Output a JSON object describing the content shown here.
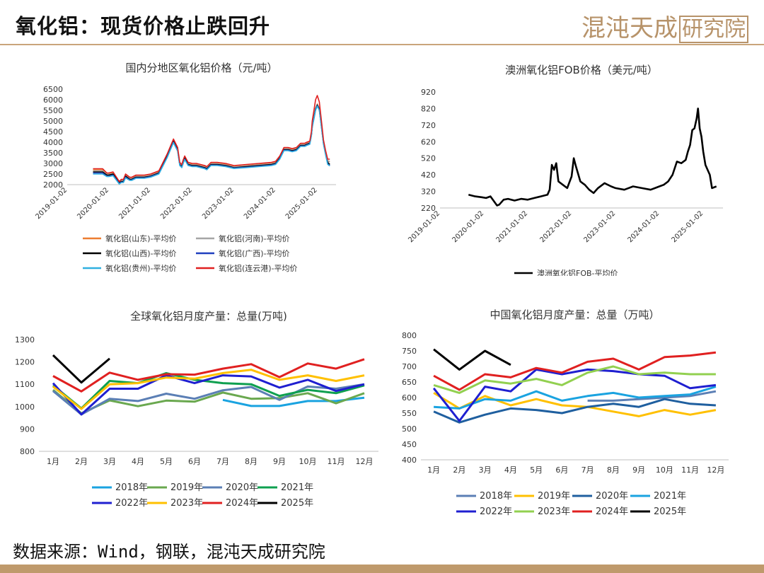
{
  "page": {
    "title": "氧化铝：现货价格止跌回升",
    "logo_text": "混沌天成",
    "logo_box_text": "研究院",
    "source": "数据来源：Wind，钢联，混沌天成研究院"
  },
  "chart_data": [
    {
      "id": "domestic",
      "type": "line",
      "title": "国内分地区氧化铝价格（元/吨）",
      "ylim": [
        2000,
        6500
      ],
      "yticks": [
        2000,
        2500,
        3000,
        3500,
        4000,
        4500,
        5000,
        5500,
        6000,
        6500
      ],
      "xticks": [
        "2019-01-02",
        "2020-01-02",
        "2021-01-02",
        "2022-01-02",
        "2023-01-02",
        "2024-01-02",
        "2025-01-02"
      ],
      "xrange": [
        2019.0,
        2025.45
      ],
      "x": [
        2019.62,
        2019.75,
        2019.85,
        2019.95,
        2020.0,
        2020.1,
        2020.25,
        2020.3,
        2020.35,
        2020.4,
        2020.5,
        2020.55,
        2020.65,
        2020.75,
        2020.85,
        2021.0,
        2021.2,
        2021.4,
        2021.55,
        2021.65,
        2021.7,
        2021.75,
        2021.78,
        2021.82,
        2021.9,
        2022.0,
        2022.1,
        2022.2,
        2022.3,
        2022.35,
        2022.45,
        2022.6,
        2022.8,
        2023.0,
        2023.3,
        2023.6,
        2023.9,
        2024.0,
        2024.1,
        2024.2,
        2024.3,
        2024.4,
        2024.5,
        2024.6,
        2024.7,
        2024.75,
        2024.82,
        2024.86,
        2024.88,
        2024.92,
        2024.96,
        2025.0,
        2025.05,
        2025.1,
        2025.15,
        2025.2,
        2025.25,
        2025.3
      ],
      "series": [
        {
          "name": "氧化铝(山东)-平均价",
          "color": "#ed7d31",
          "values": [
            2700,
            2700,
            2700,
            2500,
            2500,
            2550,
            2100,
            2200,
            2200,
            2450,
            2300,
            2300,
            2400,
            2400,
            2400,
            2450,
            2600,
            3400,
            4100,
            3700,
            3000,
            2900,
            3100,
            3300,
            3000,
            2950,
            2950,
            2900,
            2850,
            2800,
            3000,
            3000,
            2950,
            2850,
            2900,
            2950,
            3000,
            3050,
            3300,
            3700,
            3700,
            3650,
            3700,
            3900,
            3900,
            3950,
            4000,
            4400,
            4800,
            5200,
            5600,
            5800,
            5600,
            4800,
            4000,
            3500,
            3100,
            3100
          ]
        },
        {
          "name": "氧化铝(河南)-平均价",
          "color": "#a5a5a5",
          "values": [
            2650,
            2650,
            2650,
            2480,
            2480,
            2520,
            2100,
            2180,
            2180,
            2420,
            2280,
            2280,
            2380,
            2380,
            2380,
            2430,
            2580,
            3380,
            4080,
            3680,
            2980,
            2880,
            3080,
            3280,
            2980,
            2930,
            2930,
            2880,
            2830,
            2780,
            2980,
            2980,
            2930,
            2830,
            2880,
            2930,
            2980,
            3030,
            3280,
            3680,
            3680,
            3630,
            3680,
            3880,
            3880,
            3930,
            3980,
            4380,
            4780,
            5180,
            5580,
            5780,
            5580,
            4780,
            3980,
            3480,
            3080,
            3080
          ]
        },
        {
          "name": "氧化铝(山西)-平均价",
          "color": "#000000",
          "values": [
            2600,
            2600,
            2600,
            2450,
            2450,
            2500,
            2080,
            2150,
            2150,
            2400,
            2250,
            2250,
            2350,
            2350,
            2350,
            2400,
            2550,
            3350,
            4050,
            3650,
            2950,
            2850,
            3050,
            3250,
            2950,
            2900,
            2900,
            2850,
            2800,
            2750,
            2950,
            2950,
            2900,
            2800,
            2850,
            2900,
            2950,
            3000,
            3250,
            3650,
            3650,
            3600,
            3650,
            3850,
            3850,
            3900,
            3950,
            4350,
            4750,
            5150,
            5550,
            5750,
            5550,
            4750,
            3950,
            3450,
            3050,
            2950
          ]
        },
        {
          "name": "氧化铝(广西)-平均价",
          "color": "#1f3fbf",
          "values": [
            2550,
            2550,
            2550,
            2400,
            2400,
            2450,
            2050,
            2120,
            2120,
            2350,
            2220,
            2220,
            2320,
            2320,
            2320,
            2380,
            2520,
            3300,
            4000,
            3600,
            2920,
            2820,
            3000,
            3200,
            2920,
            2870,
            2870,
            2820,
            2770,
            2720,
            2920,
            2920,
            2870,
            2780,
            2820,
            2870,
            2920,
            2970,
            3220,
            3620,
            3620,
            3570,
            3620,
            3820,
            3820,
            3870,
            3920,
            4320,
            4720,
            5120,
            5520,
            5720,
            5520,
            4720,
            3920,
            3420,
            2980,
            2900
          ]
        },
        {
          "name": "氧化铝(贵州)-平均价",
          "color": "#30b0e0",
          "values": [
            2500,
            2500,
            2500,
            2380,
            2380,
            2420,
            2030,
            2100,
            2100,
            2320,
            2200,
            2200,
            2300,
            2300,
            2300,
            2350,
            2500,
            3280,
            3980,
            3580,
            2900,
            2800,
            2980,
            3180,
            2900,
            2850,
            2850,
            2800,
            2750,
            2700,
            2900,
            2900,
            2850,
            2760,
            2800,
            2850,
            2900,
            2950,
            3200,
            3600,
            3600,
            3550,
            3600,
            3800,
            3800,
            3850,
            3900,
            4300,
            4700,
            5100,
            5500,
            5700,
            5500,
            4700,
            3900,
            3400,
            2960,
            2880
          ]
        },
        {
          "name": "氧化铝(连云港)-平均价",
          "color": "#e02020",
          "values": [
            2750,
            2750,
            2750,
            2550,
            2550,
            2600,
            2150,
            2250,
            2250,
            2500,
            2350,
            2350,
            2450,
            2450,
            2450,
            2500,
            2650,
            3450,
            4150,
            3750,
            3050,
            2950,
            3150,
            3350,
            3050,
            3000,
            3000,
            2950,
            2900,
            2850,
            3050,
            3050,
            3000,
            2900,
            2950,
            3000,
            3050,
            3100,
            3350,
            3750,
            3750,
            3700,
            3750,
            3950,
            3950,
            4000,
            4050,
            4500,
            5000,
            5500,
            6000,
            6200,
            5900,
            5000,
            4100,
            3600,
            3200,
            3200
          ]
        }
      ]
    },
    {
      "id": "fob",
      "type": "line",
      "title": "澳洲氧化铝FOB价格（美元/吨）",
      "ylim": [
        220,
        920
      ],
      "yticks": [
        220,
        320,
        420,
        520,
        620,
        720,
        820,
        920
      ],
      "xticks": [
        "2019-01-02",
        "2020-01-02",
        "2021-01-02",
        "2022-01-02",
        "2023-01-02",
        "2024-01-02",
        "2025-01-02"
      ],
      "xrange": [
        2019.0,
        2025.45
      ],
      "x": [
        2019.65,
        2019.8,
        2019.95,
        2020.05,
        2020.15,
        2020.3,
        2020.35,
        2020.45,
        2020.55,
        2020.7,
        2020.85,
        2021.0,
        2021.15,
        2021.3,
        2021.45,
        2021.5,
        2021.55,
        2021.6,
        2021.65,
        2021.7,
        2021.8,
        2021.9,
        2022.0,
        2022.05,
        2022.1,
        2022.2,
        2022.25,
        2022.3,
        2022.4,
        2022.5,
        2022.6,
        2022.75,
        2022.9,
        2023.0,
        2023.2,
        2023.4,
        2023.6,
        2023.8,
        2023.9,
        2024.0,
        2024.1,
        2024.2,
        2024.3,
        2024.4,
        2024.5,
        2024.6,
        2024.65,
        2024.7,
        2024.75,
        2024.8,
        2024.85,
        2024.88,
        2024.92,
        2024.96,
        2025.0,
        2025.05,
        2025.1,
        2025.15,
        2025.2,
        2025.3
      ],
      "series": [
        {
          "name": "澳洲氧化铝FOB-平均价",
          "color": "#000000",
          "values": [
            300,
            290,
            285,
            280,
            290,
            235,
            240,
            270,
            275,
            265,
            275,
            270,
            280,
            290,
            300,
            330,
            480,
            450,
            490,
            380,
            360,
            340,
            410,
            520,
            470,
            380,
            370,
            360,
            330,
            310,
            340,
            370,
            350,
            340,
            330,
            350,
            340,
            330,
            340,
            350,
            360,
            380,
            420,
            500,
            490,
            510,
            560,
            600,
            690,
            700,
            760,
            820,
            700,
            650,
            560,
            480,
            450,
            420,
            340,
            350
          ]
        }
      ]
    },
    {
      "id": "global_output",
      "type": "line",
      "title": "全球氧化铝月度产量：总量(万吨)",
      "ylim": [
        800,
        1300
      ],
      "yticks": [
        800,
        900,
        1000,
        1100,
        1200,
        1300
      ],
      "categories": [
        "1月",
        "2月",
        "3月",
        "4月",
        "5月",
        "6月",
        "7月",
        "8月",
        "9月",
        "10月",
        "11月",
        "12月"
      ],
      "series": [
        {
          "name": "2018年",
          "color": "#1aa3e0",
          "values": [
            null,
            null,
            null,
            null,
            null,
            null,
            1030,
            1003,
            1003,
            1025,
            1025,
            1040
          ]
        },
        {
          "name": "2019年",
          "color": "#6aa84f",
          "values": [
            1075,
            970,
            1028,
            1002,
            1027,
            1022,
            1063,
            1035,
            1038,
            1060,
            1015,
            1060
          ]
        },
        {
          "name": "2020年",
          "color": "#5b7fb5",
          "values": [
            1070,
            965,
            1035,
            1025,
            1058,
            1035,
            1073,
            1088,
            1030,
            1090,
            1080,
            1100
          ]
        },
        {
          "name": "2021年",
          "color": "#0fa050",
          "values": [
            1095,
            992,
            1115,
            1105,
            1150,
            1120,
            1105,
            1100,
            1048,
            1075,
            1060,
            1095
          ]
        },
        {
          "name": "2022年",
          "color": "#1f1fd0",
          "values": [
            1105,
            965,
            1080,
            1080,
            1140,
            1105,
            1140,
            1135,
            1085,
            1120,
            1070,
            1100
          ]
        },
        {
          "name": "2023年",
          "color": "#ffc000",
          "values": [
            1090,
            990,
            1100,
            1105,
            1130,
            1125,
            1150,
            1165,
            1120,
            1140,
            1115,
            1140
          ]
        },
        {
          "name": "2024年",
          "color": "#e02020",
          "values": [
            1137,
            1068,
            1152,
            1120,
            1145,
            1143,
            1170,
            1190,
            1132,
            1193,
            1170,
            1212
          ]
        },
        {
          "name": "2025年",
          "color": "#000000",
          "values": [
            1230,
            1108,
            1215,
            null,
            null,
            null,
            null,
            null,
            null,
            null,
            null,
            null
          ]
        }
      ]
    },
    {
      "id": "china_output",
      "type": "line",
      "title": "中国氧化铝月度产量：总量（万吨）",
      "ylim": [
        400,
        800
      ],
      "yticks": [
        400,
        450,
        500,
        550,
        600,
        650,
        700,
        750,
        800
      ],
      "categories": [
        "1月",
        "2月",
        "3月",
        "4月",
        "5月",
        "6月",
        "7月",
        "8月",
        "9月",
        "10月",
        "11月",
        "12月"
      ],
      "series": [
        {
          "name": "2018年",
          "color": "#5b7fb5",
          "values": [
            null,
            null,
            null,
            null,
            null,
            null,
            590,
            590,
            595,
            600,
            605,
            620
          ]
        },
        {
          "name": "2019年",
          "color": "#ffc000",
          "values": [
            615,
            565,
            605,
            575,
            595,
            575,
            570,
            555,
            540,
            560,
            545,
            560
          ]
        },
        {
          "name": "2020年",
          "color": "#1f5f9f",
          "values": [
            555,
            520,
            545,
            565,
            560,
            550,
            570,
            580,
            570,
            595,
            580,
            575
          ]
        },
        {
          "name": "2021年",
          "color": "#1aa3e0",
          "values": [
            570,
            565,
            595,
            590,
            620,
            590,
            605,
            615,
            600,
            605,
            610,
            635
          ]
        },
        {
          "name": "2022年",
          "color": "#1f1fd0",
          "values": [
            630,
            525,
            635,
            620,
            690,
            675,
            690,
            685,
            675,
            670,
            630,
            640
          ]
        },
        {
          "name": "2023年",
          "color": "#92d050",
          "values": [
            640,
            615,
            655,
            645,
            660,
            640,
            680,
            700,
            675,
            680,
            675,
            675
          ]
        },
        {
          "name": "2024年",
          "color": "#e02020",
          "values": [
            670,
            625,
            675,
            665,
            695,
            680,
            715,
            725,
            690,
            730,
            735,
            745
          ]
        },
        {
          "name": "2025年",
          "color": "#000000",
          "values": [
            755,
            690,
            750,
            705,
            null,
            null,
            null,
            null,
            null,
            null,
            null,
            null
          ]
        }
      ]
    }
  ]
}
